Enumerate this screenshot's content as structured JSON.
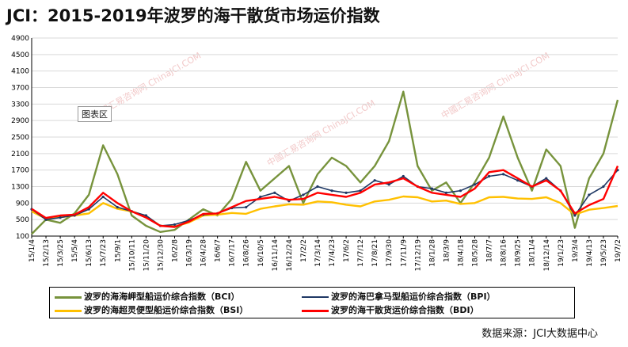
{
  "title": "JCI：2015-2019年波罗的海干散货市场运价指数",
  "source": "数据来源：JCI大数据中心",
  "chart_area_tag": "图表区",
  "watermark": "中國汇易咨询网 ChinaJCI.COM",
  "chart_data": {
    "type": "line",
    "ylim": [
      100,
      4900
    ],
    "yticks": [
      100,
      500,
      900,
      1300,
      1700,
      2100,
      2500,
      2900,
      3300,
      3700,
      4100,
      4500,
      4900
    ],
    "xticks": [
      "15/1/4",
      "15/2/13",
      "15/3/25",
      "15/5/4",
      "15/6/13",
      "15/7/23",
      "15/9/1",
      "15/10/11",
      "15/11/20",
      "15/12/30",
      "16/2/8",
      "16/3/19",
      "16/4/28",
      "16/6/7",
      "16/7/17",
      "16/8/26",
      "16/10/5",
      "16/11/14",
      "16/12/24",
      "17/2/2",
      "17/3/14",
      "17/4/23",
      "17/6/2",
      "17/7/12",
      "17/8/21",
      "17/9/30",
      "17/11/9",
      "17/12/19",
      "18/1/28",
      "18/3/9",
      "18/4/18",
      "18/5/28",
      "18/7/7",
      "18/8/16",
      "18/9/25",
      "18/11/4",
      "18/12/14",
      "19/1/23",
      "19/3/4",
      "19/4/13",
      "19/5/23",
      "19/7/2"
    ],
    "grid": true,
    "legend_position": "bottom",
    "series": [
      {
        "name": "波罗的海海岬型船运价综合指数（BCI）",
        "color": "#77933C",
        "values": [
          150,
          500,
          420,
          650,
          1100,
          2300,
          1600,
          600,
          350,
          200,
          250,
          500,
          750,
          600,
          1000,
          1900,
          1200,
          1500,
          1800,
          900,
          1600,
          2000,
          1800,
          1400,
          1800,
          2400,
          3600,
          1800,
          1200,
          1400,
          900,
          1400,
          2000,
          3000,
          2000,
          1200,
          2200,
          1800,
          300,
          1500,
          2100,
          3400
        ]
      },
      {
        "name": "波罗的海巴拿马型船运价综合指数（BPI）",
        "color": "#1F3864",
        "values": [
          750,
          500,
          550,
          600,
          750,
          1050,
          800,
          700,
          600,
          350,
          380,
          480,
          620,
          650,
          780,
          800,
          1050,
          1150,
          950,
          1100,
          1300,
          1200,
          1150,
          1200,
          1450,
          1350,
          1550,
          1300,
          1250,
          1150,
          1200,
          1350,
          1550,
          1600,
          1450,
          1300,
          1500,
          1200,
          600,
          1100,
          1300,
          1700
        ]
      },
      {
        "name": "波罗的海超灵便型船运价综合指数（BSI）",
        "color": "#FFC000",
        "values": [
          700,
          520,
          560,
          600,
          650,
          900,
          760,
          700,
          580,
          350,
          330,
          430,
          600,
          620,
          660,
          640,
          760,
          820,
          870,
          860,
          940,
          920,
          860,
          820,
          940,
          980,
          1060,
          1040,
          940,
          960,
          880,
          900,
          1040,
          1050,
          1010,
          1000,
          1040,
          900,
          620,
          740,
          780,
          830
        ]
      },
      {
        "name": "波罗的海干散货运价综合指数（BDI）",
        "color": "#FF0000",
        "values": [
          760,
          540,
          600,
          620,
          800,
          1150,
          900,
          700,
          550,
          350,
          320,
          450,
          640,
          650,
          800,
          950,
          1000,
          1050,
          980,
          1000,
          1150,
          1100,
          1050,
          1150,
          1350,
          1400,
          1500,
          1300,
          1150,
          1100,
          1050,
          1250,
          1650,
          1700,
          1500,
          1300,
          1450,
          1200,
          650,
          850,
          1000,
          1800
        ]
      }
    ]
  }
}
